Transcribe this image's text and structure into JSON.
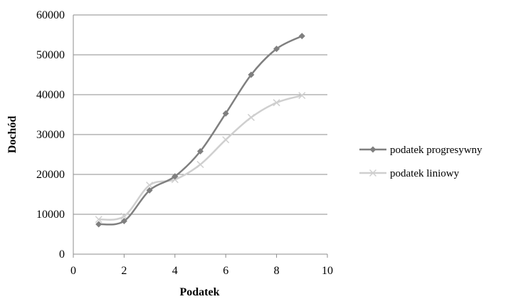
{
  "chart_data": {
    "type": "line",
    "xlabel": "Podatek",
    "ylabel": "Dochód",
    "xlim": [
      0,
      10
    ],
    "ylim": [
      0,
      60000
    ],
    "x_ticks": [
      "0",
      "2",
      "4",
      "6",
      "8",
      "10"
    ],
    "y_ticks": [
      "0",
      "10000",
      "20000",
      "30000",
      "40000",
      "50000",
      "60000"
    ],
    "grid": "horizontal",
    "legend_position": "right",
    "series": [
      {
        "name": "podatek progresywny",
        "marker": "diamond",
        "color": "#7f7f7f",
        "x": [
          1,
          2,
          3,
          4,
          5,
          6,
          7,
          8,
          9
        ],
        "y": [
          7500,
          8300,
          16000,
          19500,
          25800,
          35300,
          45000,
          51500,
          54700
        ]
      },
      {
        "name": "podatek liniowy",
        "marker": "x",
        "color": "#cfcfcf",
        "x": [
          1,
          2,
          3,
          4,
          5,
          6,
          7,
          8,
          9
        ],
        "y": [
          8700,
          9500,
          17300,
          18700,
          22500,
          28700,
          34300,
          38000,
          39800
        ]
      }
    ]
  }
}
